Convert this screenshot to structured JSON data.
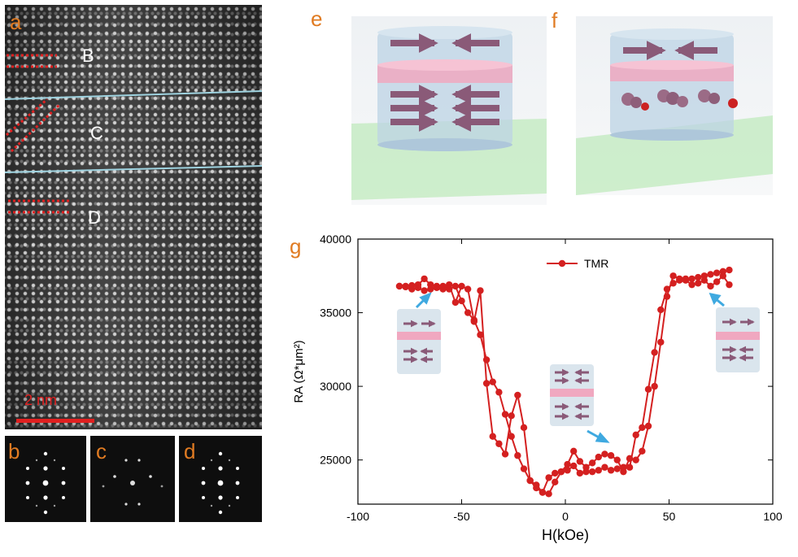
{
  "panels": {
    "a": "a",
    "b": "b",
    "c": "c",
    "d": "d",
    "e": "e",
    "f": "f",
    "g": "g"
  },
  "tem_regions": [
    "B",
    "C",
    "D"
  ],
  "scale_bar_label": "2 nm",
  "colors": {
    "panel_letter": "#e07b22",
    "series": "#d42020",
    "pointer_arrow": "#3fa9e0",
    "interface_line": "#9fd3e0",
    "lattice_guides": "#e02020"
  },
  "chart_data": {
    "type": "line",
    "title": "",
    "xlabel": "H(kOe)",
    "ylabel": "RA (Ω*μm²)",
    "xlim": [
      -100,
      100
    ],
    "ylim": [
      22000,
      40000
    ],
    "xticks": [
      -100,
      -50,
      0,
      50,
      100
    ],
    "yticks": [
      25000,
      30000,
      35000,
      40000
    ],
    "legend": "top-center",
    "series": [
      {
        "name": "TMR",
        "x": [
          -80,
          -77,
          -74,
          -71,
          -68,
          -65,
          -62,
          -59,
          -56,
          -53,
          -50,
          -47,
          -44,
          -41,
          -38,
          -35,
          -32,
          -29,
          -26,
          -23,
          -20,
          -17,
          -14,
          -11,
          -8,
          -5,
          -2,
          1,
          4,
          7,
          10,
          13,
          16,
          19,
          22,
          25,
          28,
          31,
          34,
          37,
          40,
          43,
          46,
          49,
          52,
          55,
          58,
          61,
          64,
          67,
          70,
          73,
          76,
          79
        ],
        "y": [
          36800,
          36800,
          36850,
          36900,
          37300,
          36900,
          36700,
          36800,
          36600,
          36800,
          35800,
          35000,
          34500,
          33500,
          31800,
          30300,
          29600,
          28100,
          26600,
          25300,
          24400,
          23600,
          23100,
          22800,
          23800,
          24100,
          24200,
          24300,
          24600,
          24100,
          24200,
          24200,
          24300,
          24500,
          24300,
          24400,
          24500,
          24500,
          26700,
          27200,
          29800,
          32300,
          35200,
          36600,
          37000,
          37200,
          37300,
          37300,
          37400,
          37500,
          37600,
          37700,
          37800,
          37900
        ]
      },
      {
        "name": "",
        "x": [
          79,
          76,
          73,
          70,
          67,
          64,
          61,
          58,
          55,
          52,
          49,
          46,
          43,
          40,
          37,
          34,
          31,
          28,
          25,
          22,
          19,
          16,
          13,
          10,
          7,
          4,
          1,
          -2,
          -5,
          -8,
          -11,
          -14,
          -17,
          -20,
          -23,
          -26,
          -29,
          -32,
          -35,
          -38,
          -41,
          -44,
          -47,
          -50,
          -53,
          -56,
          -59,
          -62,
          -65,
          -68,
          -71,
          -74,
          -77,
          -80
        ],
        "y": [
          36900,
          37500,
          37100,
          36800,
          37200,
          37000,
          36900,
          37200,
          37300,
          37500,
          36100,
          33000,
          30000,
          27300,
          25600,
          25000,
          25100,
          24200,
          25000,
          25300,
          25400,
          25200,
          24800,
          24500,
          24900,
          25600,
          24700,
          24200,
          23500,
          22700,
          22800,
          23300,
          23600,
          27200,
          29400,
          28000,
          25400,
          26100,
          26600,
          30200,
          36500,
          34400,
          36600,
          36800,
          35700,
          36900,
          36600,
          36800,
          36600,
          36500,
          36700,
          36600,
          36750,
          36800
        ]
      }
    ]
  }
}
